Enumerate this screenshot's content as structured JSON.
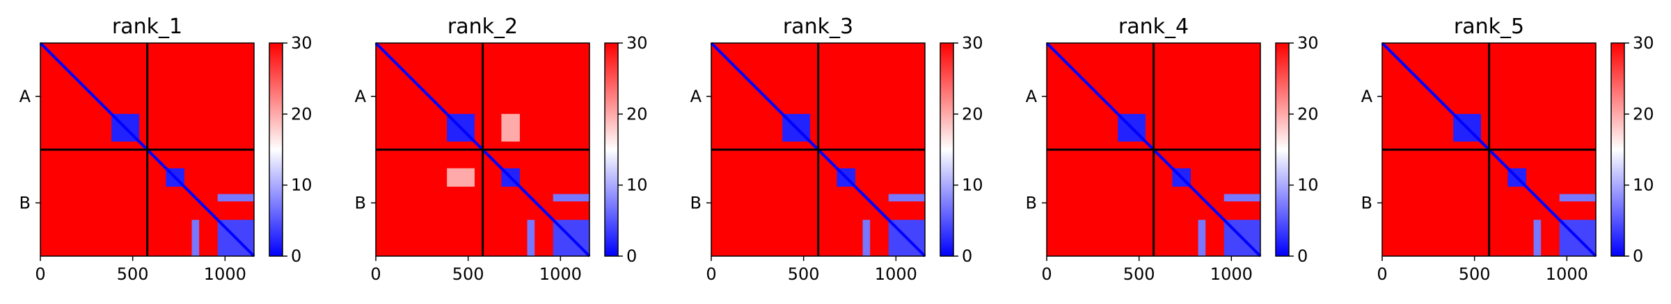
{
  "chart_data": [
    {
      "type": "heatmap",
      "title": "rank_1",
      "x_ticks": [
        0,
        500,
        1000
      ],
      "x_range": [
        0,
        1157
      ],
      "y_labels": [
        "A",
        "B"
      ],
      "chain_boundary": 579,
      "colorbar": {
        "min": 0,
        "max": 30,
        "ticks": [
          0,
          10,
          20,
          30
        ],
        "colors": [
          "#0000ff",
          "#ffffff",
          "#ff0000"
        ]
      },
      "low_blocks": [
        {
          "x": [
            385,
            535
          ],
          "y": [
            385,
            535
          ],
          "value": 2
        },
        {
          "x": [
            680,
            780
          ],
          "y": [
            680,
            780
          ],
          "value": 2
        },
        {
          "x": [
            960,
            1157
          ],
          "y": [
            960,
            1157
          ],
          "value": 4
        },
        {
          "x": [
            960,
            1157
          ],
          "y": [
            820,
            860
          ],
          "value": 7
        },
        {
          "x": [
            820,
            860
          ],
          "y": [
            960,
            1157
          ],
          "value": 7
        }
      ]
    },
    {
      "type": "heatmap",
      "title": "rank_2",
      "x_ticks": [
        0,
        500,
        1000
      ],
      "x_range": [
        0,
        1157
      ],
      "y_labels": [
        "A",
        "B"
      ],
      "chain_boundary": 579,
      "colorbar": {
        "min": 0,
        "max": 30,
        "ticks": [
          0,
          10,
          20,
          30
        ],
        "colors": [
          "#0000ff",
          "#ffffff",
          "#ff0000"
        ]
      },
      "low_blocks": [
        {
          "x": [
            385,
            535
          ],
          "y": [
            385,
            535
          ],
          "value": 2
        },
        {
          "x": [
            680,
            780
          ],
          "y": [
            680,
            780
          ],
          "value": 2
        },
        {
          "x": [
            960,
            1157
          ],
          "y": [
            960,
            1157
          ],
          "value": 4
        },
        {
          "x": [
            960,
            1157
          ],
          "y": [
            820,
            860
          ],
          "value": 7
        },
        {
          "x": [
            820,
            860
          ],
          "y": [
            960,
            1157
          ],
          "value": 7
        },
        {
          "x": [
            385,
            535
          ],
          "y": [
            680,
            780
          ],
          "value": 20
        },
        {
          "x": [
            680,
            780
          ],
          "y": [
            385,
            535
          ],
          "value": 20
        }
      ]
    },
    {
      "type": "heatmap",
      "title": "rank_3",
      "x_ticks": [
        0,
        500,
        1000
      ],
      "x_range": [
        0,
        1157
      ],
      "y_labels": [
        "A",
        "B"
      ],
      "chain_boundary": 579,
      "colorbar": {
        "min": 0,
        "max": 30,
        "ticks": [
          0,
          10,
          20,
          30
        ],
        "colors": [
          "#0000ff",
          "#ffffff",
          "#ff0000"
        ]
      },
      "low_blocks": [
        {
          "x": [
            385,
            535
          ],
          "y": [
            385,
            535
          ],
          "value": 2
        },
        {
          "x": [
            680,
            780
          ],
          "y": [
            680,
            780
          ],
          "value": 2
        },
        {
          "x": [
            960,
            1157
          ],
          "y": [
            960,
            1157
          ],
          "value": 4
        },
        {
          "x": [
            960,
            1157
          ],
          "y": [
            820,
            860
          ],
          "value": 7
        },
        {
          "x": [
            820,
            860
          ],
          "y": [
            960,
            1157
          ],
          "value": 7
        }
      ]
    },
    {
      "type": "heatmap",
      "title": "rank_4",
      "x_ticks": [
        0,
        500,
        1000
      ],
      "x_range": [
        0,
        1157
      ],
      "y_labels": [
        "A",
        "B"
      ],
      "chain_boundary": 579,
      "colorbar": {
        "min": 0,
        "max": 30,
        "ticks": [
          0,
          10,
          20,
          30
        ],
        "colors": [
          "#0000ff",
          "#ffffff",
          "#ff0000"
        ]
      },
      "low_blocks": [
        {
          "x": [
            385,
            535
          ],
          "y": [
            385,
            535
          ],
          "value": 2
        },
        {
          "x": [
            680,
            780
          ],
          "y": [
            680,
            780
          ],
          "value": 2
        },
        {
          "x": [
            960,
            1157
          ],
          "y": [
            960,
            1157
          ],
          "value": 4
        },
        {
          "x": [
            960,
            1157
          ],
          "y": [
            820,
            860
          ],
          "value": 7
        },
        {
          "x": [
            820,
            860
          ],
          "y": [
            960,
            1157
          ],
          "value": 7
        }
      ]
    },
    {
      "type": "heatmap",
      "title": "rank_5",
      "x_ticks": [
        0,
        500,
        1000
      ],
      "x_range": [
        0,
        1157
      ],
      "y_labels": [
        "A",
        "B"
      ],
      "chain_boundary": 579,
      "colorbar": {
        "min": 0,
        "max": 30,
        "ticks": [
          0,
          10,
          20,
          30
        ],
        "colors": [
          "#0000ff",
          "#ffffff",
          "#ff0000"
        ]
      },
      "low_blocks": [
        {
          "x": [
            385,
            535
          ],
          "y": [
            385,
            535
          ],
          "value": 2
        },
        {
          "x": [
            680,
            780
          ],
          "y": [
            680,
            780
          ],
          "value": 2
        },
        {
          "x": [
            960,
            1157
          ],
          "y": [
            960,
            1157
          ],
          "value": 4
        },
        {
          "x": [
            960,
            1157
          ],
          "y": [
            820,
            860
          ],
          "value": 7
        },
        {
          "x": [
            820,
            860
          ],
          "y": [
            960,
            1157
          ],
          "value": 7
        }
      ]
    }
  ]
}
